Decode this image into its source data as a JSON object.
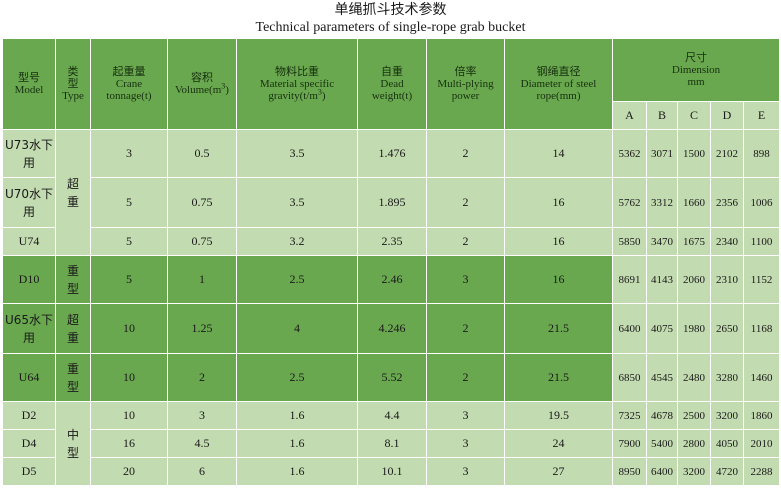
{
  "title": {
    "cn": "单绳抓斗技术参数",
    "en": "Technical parameters of single-rope grab bucket"
  },
  "headers": {
    "model": {
      "cn": "型号",
      "en": "Model"
    },
    "type": {
      "cn": "类型",
      "en": "Type"
    },
    "crane_tonnage": {
      "cn": "起重量",
      "en1": "Crane",
      "en2": "tonnage(t)"
    },
    "volume": {
      "cn": "容积",
      "en": "Volume(m",
      "sup": "3",
      "end": ")"
    },
    "gravity": {
      "cn": "物料比重",
      "en1": "Material specific",
      "en2": "gravity(t/m",
      "sup": "3",
      "end": ")"
    },
    "dead_weight": {
      "cn": "自重",
      "en1": "Dead",
      "en2": "weight(t)"
    },
    "multi_plying": {
      "cn": "倍率",
      "en1": "Multi-plying",
      "en2": "power"
    },
    "rope": {
      "cn": "钢绳直径",
      "en1": "Diameter of steel",
      "en2": "rope(mm)"
    },
    "dimension": {
      "cn": "尺寸",
      "en": "Dimension",
      "unit": "mm"
    },
    "dim_cols": [
      "A",
      "B",
      "C",
      "D",
      "E"
    ]
  },
  "type_labels": {
    "super_heavy_1": "超重",
    "heavy_1": "重型",
    "super_heavy_2": "超重",
    "heavy_2": "重型",
    "medium": "中型"
  },
  "rows": [
    {
      "model": "U73水下用",
      "crane": "3",
      "volume": "0.5",
      "gravity": "3.5",
      "weight": "1.476",
      "power": "2",
      "rope": "14",
      "A": "5362",
      "B": "3071",
      "C": "1500",
      "D": "2102",
      "E": "898"
    },
    {
      "model": "U70水下用",
      "crane": "5",
      "volume": "0.75",
      "gravity": "3.5",
      "weight": "1.895",
      "power": "2",
      "rope": "16",
      "A": "5762",
      "B": "3312",
      "C": "1660",
      "D": "2356",
      "E": "1006"
    },
    {
      "model": "U74",
      "crane": "5",
      "volume": "0.75",
      "gravity": "3.2",
      "weight": "2.35",
      "power": "2",
      "rope": "16",
      "A": "5850",
      "B": "3470",
      "C": "1675",
      "D": "2340",
      "E": "1100"
    },
    {
      "model": "D10",
      "crane": "5",
      "volume": "1",
      "gravity": "2.5",
      "weight": "2.46",
      "power": "3",
      "rope": "16",
      "A": "8691",
      "B": "4143",
      "C": "2060",
      "D": "2310",
      "E": "1152"
    },
    {
      "model": "U65水下用",
      "crane": "10",
      "volume": "1.25",
      "gravity": "4",
      "weight": "4.246",
      "power": "2",
      "rope": "21.5",
      "A": "6400",
      "B": "4075",
      "C": "1980",
      "D": "2650",
      "E": "1168"
    },
    {
      "model": "U64",
      "crane": "10",
      "volume": "2",
      "gravity": "2.5",
      "weight": "5.52",
      "power": "2",
      "rope": "21.5",
      "A": "6850",
      "B": "4545",
      "C": "2480",
      "D": "3280",
      "E": "1460"
    },
    {
      "model": "D2",
      "crane": "10",
      "volume": "3",
      "gravity": "1.6",
      "weight": "4.4",
      "power": "3",
      "rope": "19.5",
      "A": "7325",
      "B": "4678",
      "C": "2500",
      "D": "3200",
      "E": "1860"
    },
    {
      "model": "D4",
      "crane": "16",
      "volume": "4.5",
      "gravity": "1.6",
      "weight": "8.1",
      "power": "3",
      "rope": "24",
      "A": "7900",
      "B": "5400",
      "C": "2800",
      "D": "4050",
      "E": "2010"
    },
    {
      "model": "D5",
      "crane": "20",
      "volume": "6",
      "gravity": "1.6",
      "weight": "10.1",
      "power": "3",
      "rope": "27",
      "A": "8950",
      "B": "6400",
      "C": "3200",
      "D": "4720",
      "E": "2288"
    }
  ],
  "colors": {
    "header_green": "#6aa84f",
    "light_green": "#c3dbb0"
  }
}
